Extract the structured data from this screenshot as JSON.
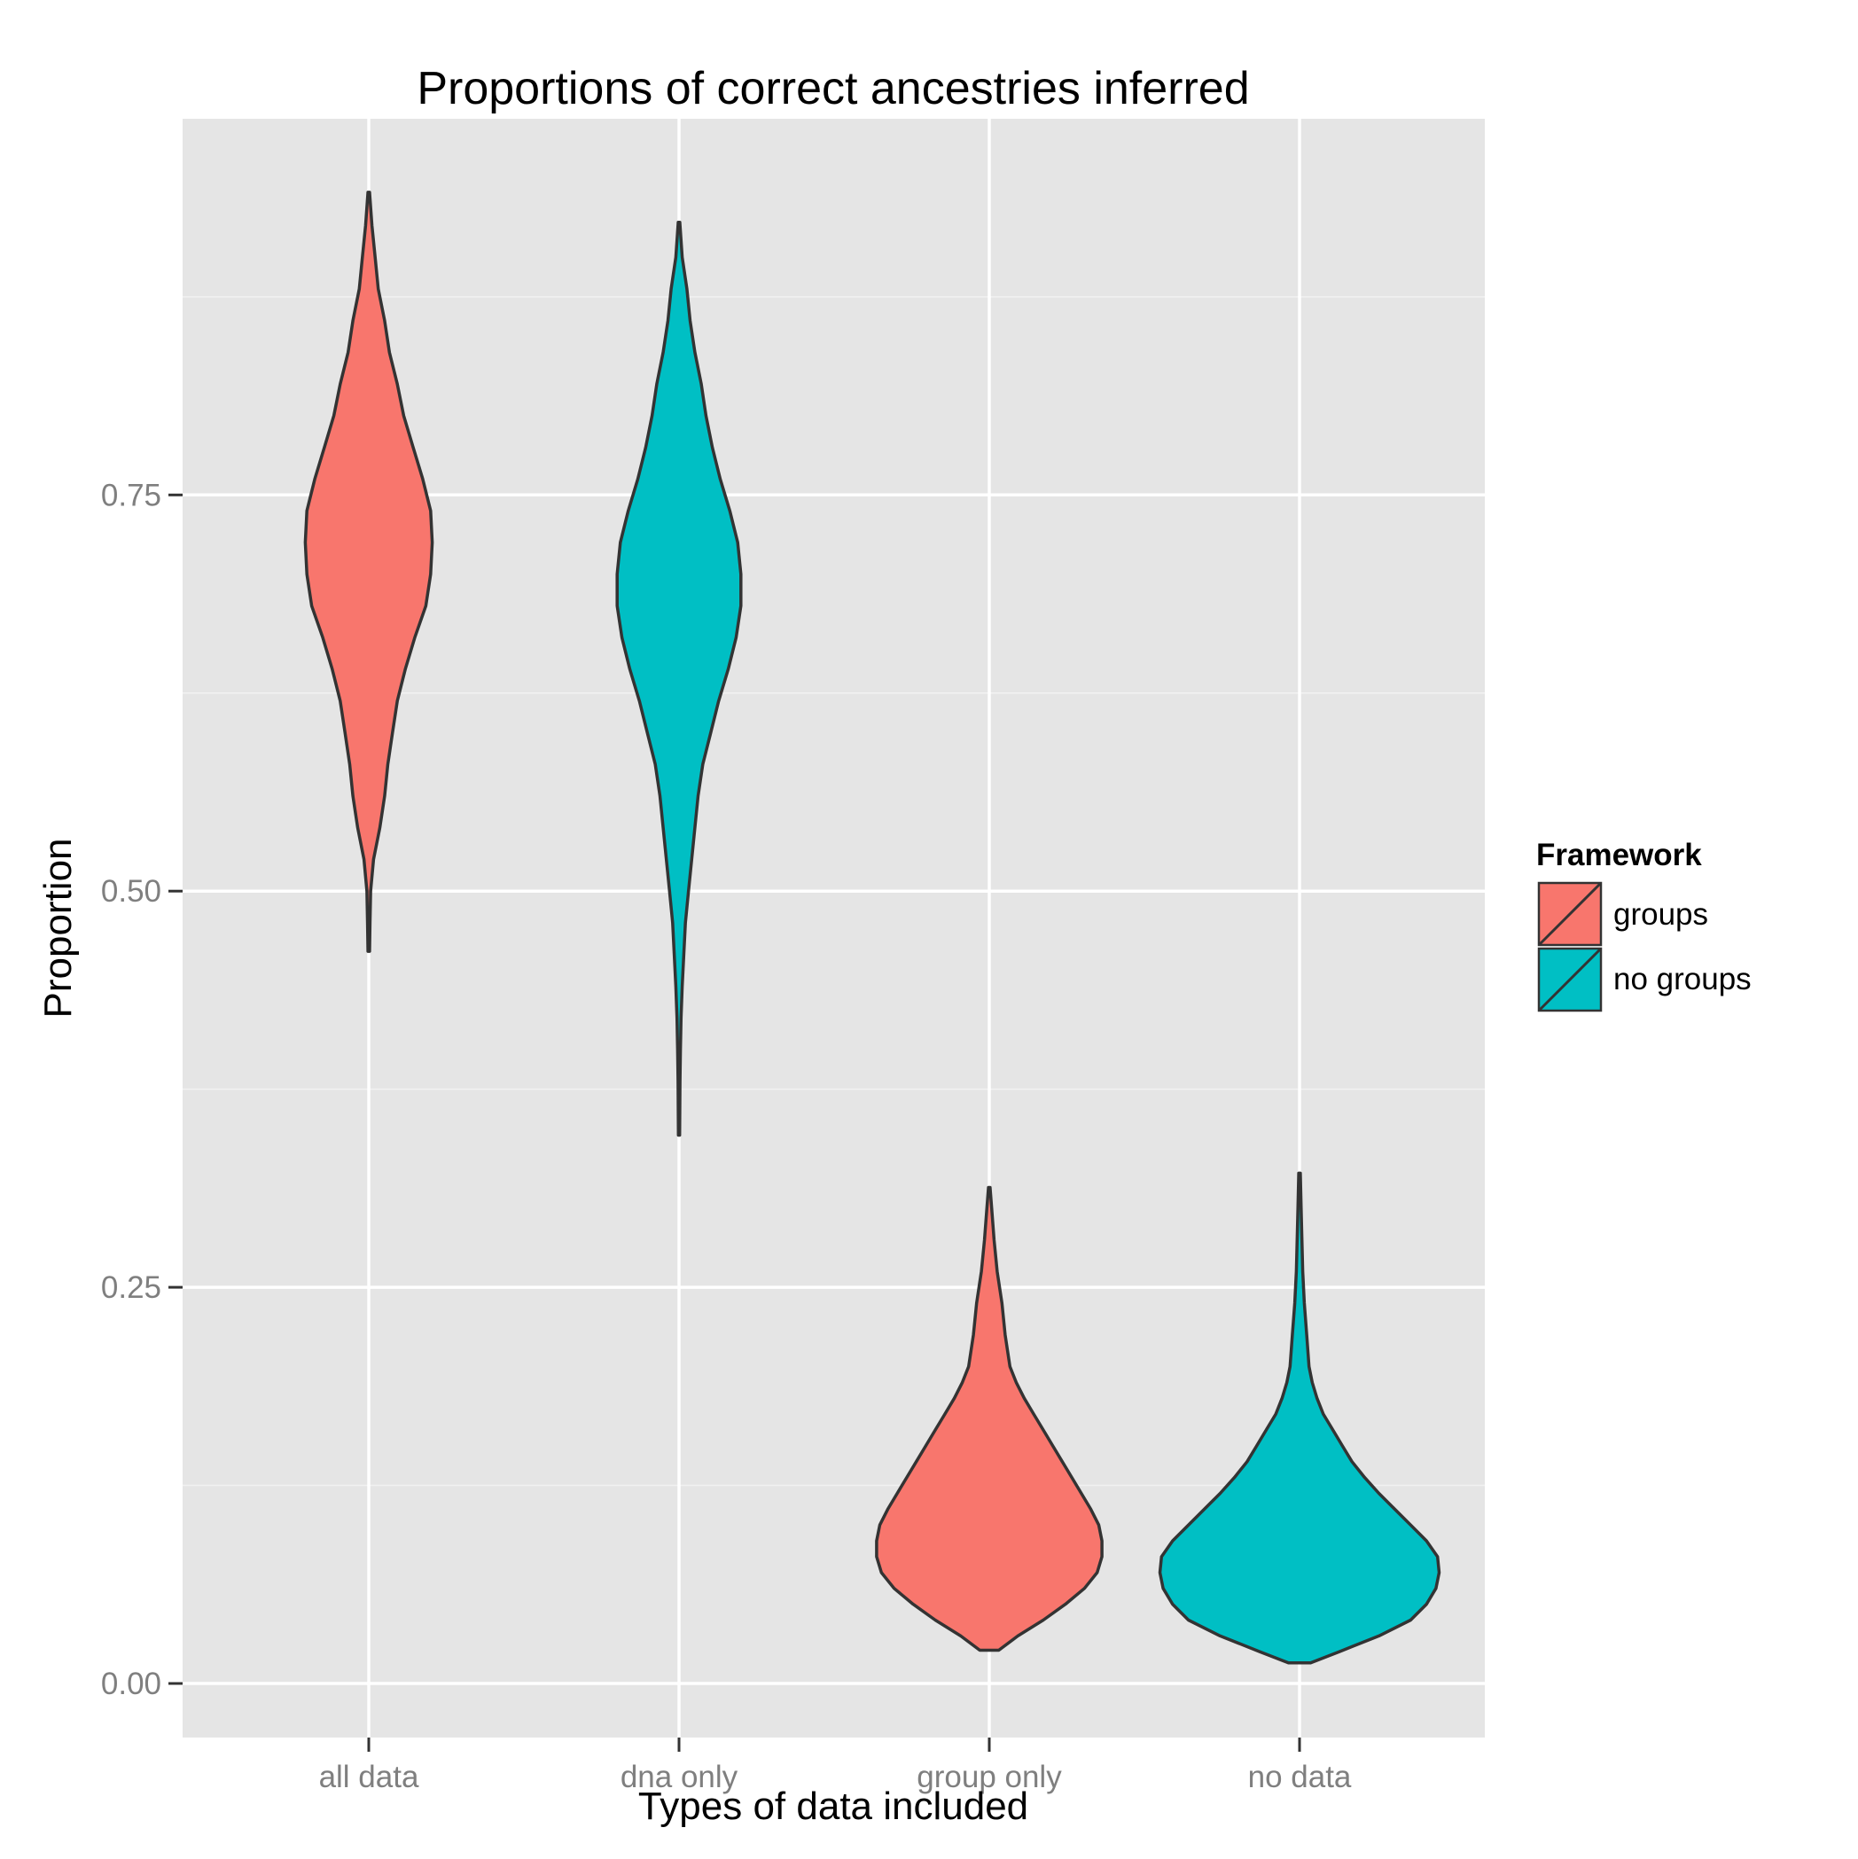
{
  "chart_data": {
    "type": "violin",
    "title": "Proportions of correct ancestries inferred",
    "xlabel": "Types of data included",
    "ylabel": "Proportion",
    "categories": [
      "all data",
      "dna only",
      "group only",
      "no data"
    ],
    "ylim": [
      -0.03,
      0.99
    ],
    "yticks": [
      0.0,
      0.25,
      0.5,
      0.75
    ],
    "ytick_labels": [
      "0.00",
      "0.25",
      "0.50",
      "0.75"
    ],
    "grid": true,
    "legend": {
      "title": "Framework",
      "position": "right",
      "entries": [
        {
          "label": "groups",
          "color": "#F8766D"
        },
        {
          "label": "no groups",
          "color": "#00BFC4"
        }
      ]
    },
    "violins": [
      {
        "category": "all data",
        "framework": "groups",
        "color": "#F8766D",
        "min": 0.462,
        "max": 0.941,
        "profile": [
          [
            0.462,
            0.0005
          ],
          [
            0.48,
            0.0008
          ],
          [
            0.5,
            0.0012
          ],
          [
            0.52,
            0.003
          ],
          [
            0.54,
            0.007
          ],
          [
            0.56,
            0.01
          ],
          [
            0.58,
            0.012
          ],
          [
            0.6,
            0.015
          ],
          [
            0.62,
            0.018
          ],
          [
            0.64,
            0.023
          ],
          [
            0.66,
            0.029
          ],
          [
            0.68,
            0.036
          ],
          [
            0.7,
            0.039
          ],
          [
            0.72,
            0.04
          ],
          [
            0.74,
            0.039
          ],
          [
            0.76,
            0.034
          ],
          [
            0.78,
            0.028
          ],
          [
            0.8,
            0.022
          ],
          [
            0.82,
            0.018
          ],
          [
            0.84,
            0.013
          ],
          [
            0.86,
            0.01
          ],
          [
            0.88,
            0.006
          ],
          [
            0.9,
            0.004
          ],
          [
            0.92,
            0.002
          ],
          [
            0.941,
            0.0005
          ]
        ]
      },
      {
        "category": "dna only",
        "framework": "no groups",
        "color": "#00BFC4",
        "min": 0.346,
        "max": 0.922,
        "profile": [
          [
            0.346,
            0.0004
          ],
          [
            0.38,
            0.0006
          ],
          [
            0.4,
            0.0009
          ],
          [
            0.42,
            0.0013
          ],
          [
            0.44,
            0.002
          ],
          [
            0.46,
            0.003
          ],
          [
            0.48,
            0.004
          ],
          [
            0.5,
            0.006
          ],
          [
            0.52,
            0.008
          ],
          [
            0.54,
            0.01
          ],
          [
            0.56,
            0.012
          ],
          [
            0.58,
            0.015
          ],
          [
            0.6,
            0.02
          ],
          [
            0.62,
            0.025
          ],
          [
            0.64,
            0.031
          ],
          [
            0.66,
            0.036
          ],
          [
            0.68,
            0.039
          ],
          [
            0.7,
            0.039
          ],
          [
            0.72,
            0.037
          ],
          [
            0.74,
            0.032
          ],
          [
            0.76,
            0.026
          ],
          [
            0.78,
            0.021
          ],
          [
            0.8,
            0.017
          ],
          [
            0.82,
            0.014
          ],
          [
            0.84,
            0.01
          ],
          [
            0.86,
            0.007
          ],
          [
            0.88,
            0.005
          ],
          [
            0.9,
            0.002
          ],
          [
            0.922,
            0.0005
          ]
        ]
      },
      {
        "category": "group only",
        "framework": "groups",
        "color": "#F8766D",
        "min": 0.021,
        "max": 0.313,
        "profile": [
          [
            0.021,
            0.006
          ],
          [
            0.03,
            0.018
          ],
          [
            0.04,
            0.034
          ],
          [
            0.05,
            0.048
          ],
          [
            0.06,
            0.06
          ],
          [
            0.07,
            0.068
          ],
          [
            0.08,
            0.071
          ],
          [
            0.09,
            0.071
          ],
          [
            0.1,
            0.069
          ],
          [
            0.11,
            0.064
          ],
          [
            0.12,
            0.058
          ],
          [
            0.13,
            0.052
          ],
          [
            0.14,
            0.046
          ],
          [
            0.15,
            0.04
          ],
          [
            0.16,
            0.034
          ],
          [
            0.17,
            0.028
          ],
          [
            0.18,
            0.022
          ],
          [
            0.19,
            0.017
          ],
          [
            0.2,
            0.013
          ],
          [
            0.22,
            0.01
          ],
          [
            0.24,
            0.008
          ],
          [
            0.26,
            0.005
          ],
          [
            0.28,
            0.003
          ],
          [
            0.3,
            0.0015
          ],
          [
            0.313,
            0.0005
          ]
        ]
      },
      {
        "category": "no data",
        "framework": "no groups",
        "color": "#00BFC4",
        "min": 0.013,
        "max": 0.322,
        "profile": [
          [
            0.013,
            0.007
          ],
          [
            0.02,
            0.025
          ],
          [
            0.03,
            0.05
          ],
          [
            0.04,
            0.07
          ],
          [
            0.05,
            0.08
          ],
          [
            0.06,
            0.086
          ],
          [
            0.07,
            0.088
          ],
          [
            0.08,
            0.087
          ],
          [
            0.09,
            0.08
          ],
          [
            0.1,
            0.07
          ],
          [
            0.11,
            0.06
          ],
          [
            0.12,
            0.05
          ],
          [
            0.13,
            0.041
          ],
          [
            0.14,
            0.033
          ],
          [
            0.15,
            0.027
          ],
          [
            0.16,
            0.021
          ],
          [
            0.17,
            0.015
          ],
          [
            0.18,
            0.011
          ],
          [
            0.19,
            0.008
          ],
          [
            0.2,
            0.006
          ],
          [
            0.22,
            0.0045
          ],
          [
            0.24,
            0.003
          ],
          [
            0.26,
            0.002
          ],
          [
            0.28,
            0.0015
          ],
          [
            0.3,
            0.001
          ],
          [
            0.322,
            0.0005
          ]
        ]
      }
    ]
  }
}
